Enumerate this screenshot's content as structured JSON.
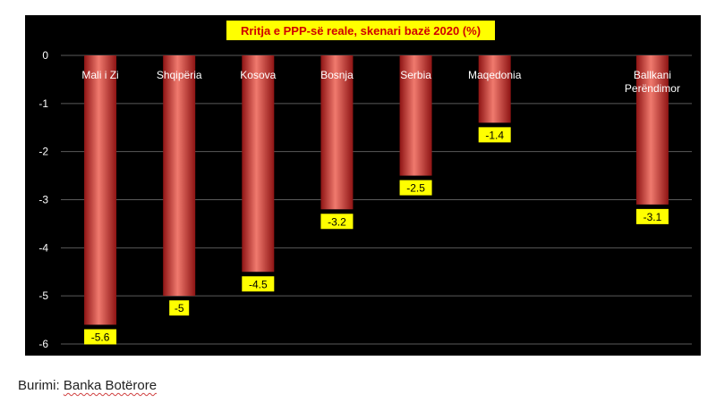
{
  "chart_data": {
    "type": "bar",
    "title": "Rritja e PPP-së reale, skenari bazë 2020 (%)",
    "categories": [
      "Mali i Zi",
      "Shqipëria",
      "Kosova",
      "Bosnja",
      "Serbia",
      "Maqedonia",
      "",
      "Ballkani Perëndimor"
    ],
    "category_lines": [
      [
        "Mali i Zi"
      ],
      [
        "Shqipëria"
      ],
      [
        "Kosova"
      ],
      [
        "Bosnja"
      ],
      [
        "Serbia"
      ],
      [
        "Maqedonia"
      ],
      [],
      [
        "Ballkani",
        "Perëndimor"
      ]
    ],
    "values": [
      -5.6,
      -5,
      -4.5,
      -3.2,
      -2.5,
      -1.4,
      null,
      -3.1
    ],
    "data_labels": [
      "-5.6",
      "-5",
      "-4.5",
      "-3.2",
      "-2.5",
      "-1.4",
      "",
      "-3.1"
    ],
    "ylim": [
      -6,
      0
    ],
    "yticks": [
      0,
      -1,
      -2,
      -3,
      -4,
      -5,
      -6
    ],
    "grid": true,
    "legend": "none",
    "colors": {
      "background": "#000000",
      "bar": "#d93a3a",
      "bar_highlight": "#f07a6e",
      "bar_shadow": "#8e1414",
      "grid": "#5a5a5a",
      "label_bg": "#ffff00",
      "title_bg": "#ffff00",
      "title_text": "#d00000",
      "tick_text": "#ffffff",
      "category_text": "#ffffff"
    }
  },
  "source": {
    "prefix": "Burimi:",
    "text": "Banka Botërore"
  }
}
